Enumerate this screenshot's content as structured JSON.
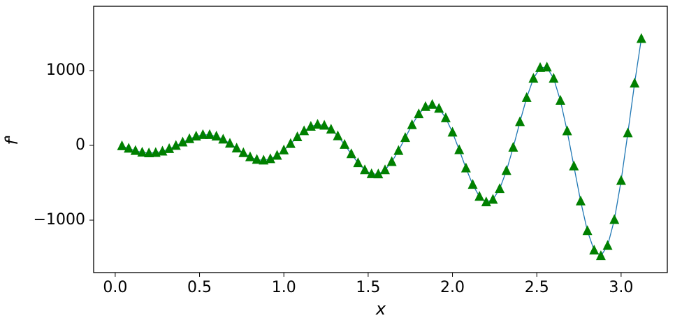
{
  "chart_data": {
    "type": "line",
    "x_label": "x",
    "y_label": "f'",
    "x": [
      0.04,
      0.08,
      0.12,
      0.16,
      0.2,
      0.24,
      0.28,
      0.32,
      0.36,
      0.4,
      0.44,
      0.48,
      0.52,
      0.56,
      0.6,
      0.64,
      0.68,
      0.72,
      0.76,
      0.8,
      0.84,
      0.88,
      0.92,
      0.96,
      1.0,
      1.04,
      1.08,
      1.12,
      1.16,
      1.2,
      1.24,
      1.28,
      1.32,
      1.36,
      1.4,
      1.44,
      1.48,
      1.52,
      1.56,
      1.6,
      1.64,
      1.68,
      1.72,
      1.76,
      1.8,
      1.84,
      1.88,
      1.92,
      1.96,
      2.0,
      2.04,
      2.08,
      2.12,
      2.16,
      2.2,
      2.24,
      2.28,
      2.32,
      2.36,
      2.4,
      2.44,
      2.48,
      2.52,
      2.56,
      2.6,
      2.64,
      2.68,
      2.72,
      2.76,
      2.8,
      2.84,
      2.88,
      2.92,
      2.96,
      3.0,
      3.04,
      3.08,
      3.12
    ],
    "series": [
      {
        "color": "#1f77b4",
        "style": "line",
        "values": [
          -8,
          -41,
          -71,
          -93,
          -103,
          -98,
          -79,
          -46,
          -4,
          42,
          86,
          121,
          141,
          141,
          121,
          81,
          26,
          -38,
          -101,
          -155,
          -190,
          -200,
          -181,
          -135,
          -64,
          22,
          112,
          193,
          252,
          279,
          266,
          214,
          125,
          10,
          -115,
          -235,
          -329,
          -382,
          -384,
          -329,
          -220,
          -71,
          102,
          274,
          420,
          516,
          544,
          493,
          366,
          174,
          -61,
          -305,
          -525,
          -685,
          -758,
          -724,
          -581,
          -339,
          -28,
          314,
          637,
          894,
          1039,
          1044,
          894,
          599,
          192,
          -278,
          -746,
          -1143,
          -1403,
          -1478,
          -1341,
          -994,
          -472,
          165,
          830,
          1427
        ]
      },
      {
        "color": "#008000",
        "style": "marker",
        "values": [
          -8,
          -41,
          -71,
          -93,
          -103,
          -98,
          -79,
          -46,
          -4,
          42,
          86,
          121,
          141,
          141,
          121,
          81,
          26,
          -38,
          -101,
          -155,
          -190,
          -200,
          -181,
          -135,
          -64,
          22,
          112,
          193,
          252,
          279,
          266,
          214,
          125,
          10,
          -115,
          -235,
          -329,
          -382,
          -384,
          -329,
          -220,
          -71,
          102,
          274,
          420,
          516,
          544,
          493,
          366,
          174,
          -61,
          -305,
          -525,
          -685,
          -758,
          -724,
          -581,
          -339,
          -28,
          314,
          637,
          894,
          1039,
          1044,
          894,
          599,
          192,
          -278,
          -746,
          -1143,
          -1403,
          -1478,
          -1341,
          -994,
          -472,
          165,
          830,
          1427
        ]
      }
    ],
    "xlim": [
      -0.128,
      3.274
    ],
    "ylim": [
      -1701,
      1860
    ],
    "xticks": [
      {
        "value": 0,
        "label": "0.0"
      },
      0.5,
      {
        "value": 1,
        "label": "1.0"
      },
      1.5,
      {
        "value": 2,
        "label": "2.0"
      },
      2.5,
      {
        "value": 3,
        "label": "3.0"
      }
    ],
    "yticks": [
      {
        "value": -1000,
        "label": "−1000"
      },
      0,
      1000
    ],
    "grid": false
  }
}
